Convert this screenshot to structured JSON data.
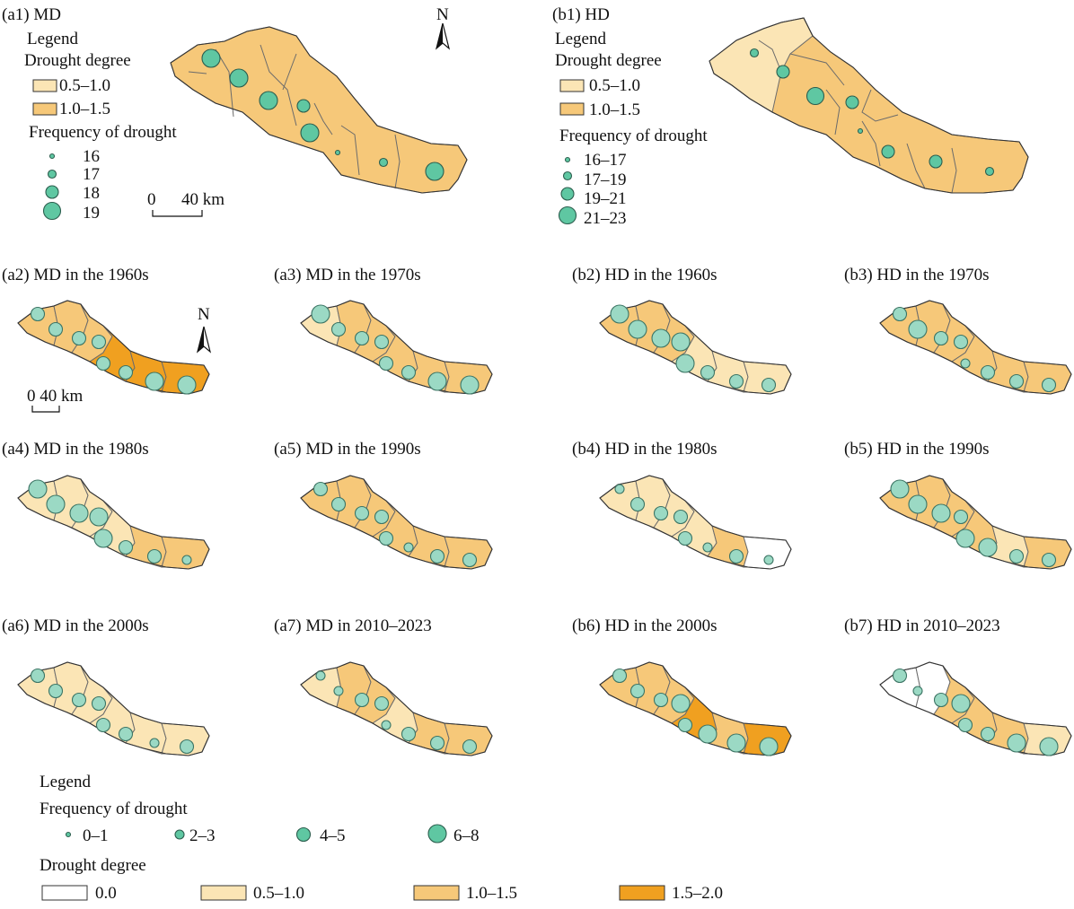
{
  "colors": {
    "deg_0": "#ffffff",
    "deg_05_10": "#fbe5b5",
    "deg_10_15": "#f6c879",
    "deg_15_20": "#f0a020",
    "point_fill": "#5fc7a2",
    "point_stroke": "#2c5e4e"
  },
  "a1": {
    "title": "(a1) MD",
    "legend_title": "Legend",
    "degree_title": "Drought degree",
    "degree_items": [
      "0.5–1.0",
      "1.0–1.5"
    ],
    "freq_title": "Frequency of drought",
    "freq_items": [
      "16",
      "17",
      "18",
      "19"
    ],
    "scale_label": "0      40 km",
    "north": "N"
  },
  "b1": {
    "title": "(b1) HD",
    "legend_title": "Legend",
    "degree_title": "Drought degree",
    "degree_items": [
      "0.5–1.0",
      "1.0–1.5"
    ],
    "freq_title": "Frequency of drought",
    "freq_items": [
      "16–17",
      "17–19",
      "19–21",
      "21–23"
    ]
  },
  "small_maps": [
    {
      "title": "(a2) MD in the 1960s",
      "scale_label": "0   40 km",
      "north": "N"
    },
    {
      "title": "(a3) MD in the 1970s"
    },
    {
      "title": "(b2) HD in the 1960s"
    },
    {
      "title": "(b3) HD in the 1970s"
    },
    {
      "title": "(a4) MD in the 1980s"
    },
    {
      "title": "(a5) MD in the 1990s"
    },
    {
      "title": "(b4) HD in the 1980s"
    },
    {
      "title": "(b5) HD in the 1990s"
    },
    {
      "title": "(a6) MD in the 2000s"
    },
    {
      "title": "(a7) MD in 2010–2023"
    },
    {
      "title": "(b6) HD in the 2000s"
    },
    {
      "title": "(b7) HD in 2010–2023"
    }
  ],
  "bottom_legend": {
    "legend_title": "Legend",
    "freq_title": "Frequency of drought",
    "freq_items": [
      "0–1",
      "2–3",
      "4–5",
      "6–8"
    ],
    "degree_title": "Drought degree",
    "degree_items": [
      "0.0",
      "0.5–1.0",
      "1.0–1.5",
      "1.5–2.0"
    ]
  }
}
